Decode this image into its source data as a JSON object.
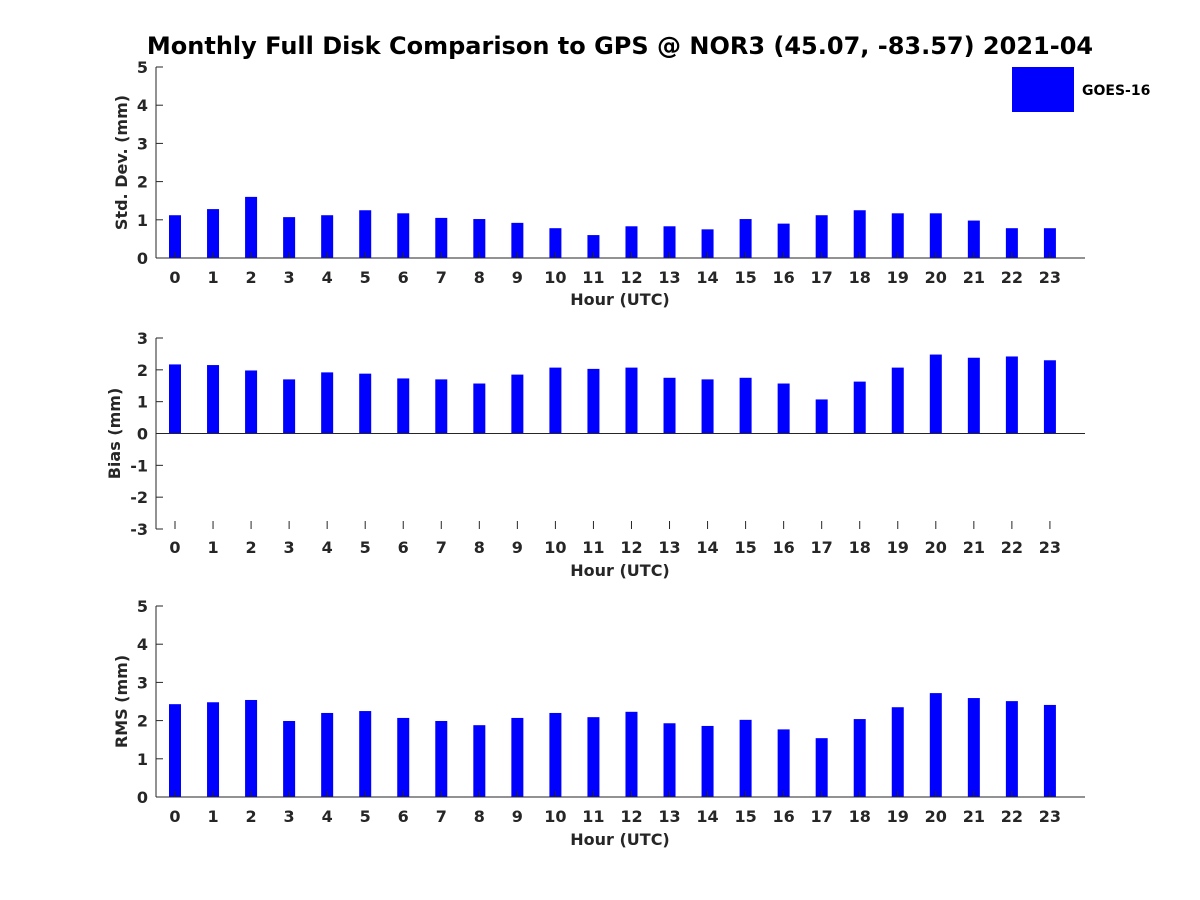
{
  "title": "Monthly Full Disk Comparison to GPS @ NOR3 (45.07, -83.57) 2021-04",
  "legend": {
    "label": "GOES-16",
    "color": "#0000ff",
    "position": "top-right"
  },
  "chart_data": [
    {
      "type": "bar",
      "categories": [
        "0",
        "1",
        "2",
        "3",
        "4",
        "5",
        "6",
        "7",
        "8",
        "9",
        "10",
        "11",
        "12",
        "13",
        "14",
        "15",
        "16",
        "17",
        "18",
        "19",
        "20",
        "21",
        "22",
        "23"
      ],
      "series": [
        {
          "name": "GOES-16",
          "color": "#0000ff",
          "values": [
            1.12,
            1.28,
            1.6,
            1.07,
            1.12,
            1.25,
            1.17,
            1.05,
            1.02,
            0.92,
            0.78,
            0.6,
            0.83,
            0.83,
            0.75,
            1.02,
            0.9,
            1.12,
            1.25,
            1.17,
            1.17,
            0.98,
            0.78,
            0.78
          ]
        }
      ],
      "xlabel": "Hour (UTC)",
      "ylabel": "Std. Dev. (mm)",
      "ylim": [
        0,
        5
      ],
      "yticks": [
        "0",
        "1",
        "2",
        "3",
        "4",
        "5"
      ],
      "grid": false
    },
    {
      "type": "bar",
      "categories": [
        "0",
        "1",
        "2",
        "3",
        "4",
        "5",
        "6",
        "7",
        "8",
        "9",
        "10",
        "11",
        "12",
        "13",
        "14",
        "15",
        "16",
        "17",
        "18",
        "19",
        "20",
        "21",
        "22",
        "23"
      ],
      "series": [
        {
          "name": "GOES-16",
          "color": "#0000ff",
          "values": [
            2.17,
            2.15,
            1.98,
            1.7,
            1.92,
            1.88,
            1.73,
            1.7,
            1.57,
            1.85,
            2.07,
            2.03,
            2.07,
            1.75,
            1.7,
            1.75,
            1.57,
            1.07,
            1.63,
            2.07,
            2.48,
            2.38,
            2.42,
            2.3
          ]
        }
      ],
      "xlabel": "Hour (UTC)",
      "ylabel": "Bias (mm)",
      "ylim": [
        -3,
        3
      ],
      "yticks": [
        "-3",
        "-2",
        "-1",
        "0",
        "1",
        "2",
        "3"
      ],
      "grid": false
    },
    {
      "type": "bar",
      "categories": [
        "0",
        "1",
        "2",
        "3",
        "4",
        "5",
        "6",
        "7",
        "8",
        "9",
        "10",
        "11",
        "12",
        "13",
        "14",
        "15",
        "16",
        "17",
        "18",
        "19",
        "20",
        "21",
        "22",
        "23"
      ],
      "series": [
        {
          "name": "GOES-16",
          "color": "#0000ff",
          "values": [
            2.43,
            2.48,
            2.54,
            1.99,
            2.2,
            2.25,
            2.07,
            1.99,
            1.88,
            2.07,
            2.2,
            2.09,
            2.23,
            1.93,
            1.86,
            2.02,
            1.77,
            1.54,
            2.04,
            2.35,
            2.72,
            2.59,
            2.51,
            2.41
          ]
        }
      ],
      "xlabel": "Hour (UTC)",
      "ylabel": "RMS (mm)",
      "ylim": [
        0,
        5
      ],
      "yticks": [
        "0",
        "1",
        "2",
        "3",
        "4",
        "5"
      ],
      "grid": false
    }
  ]
}
